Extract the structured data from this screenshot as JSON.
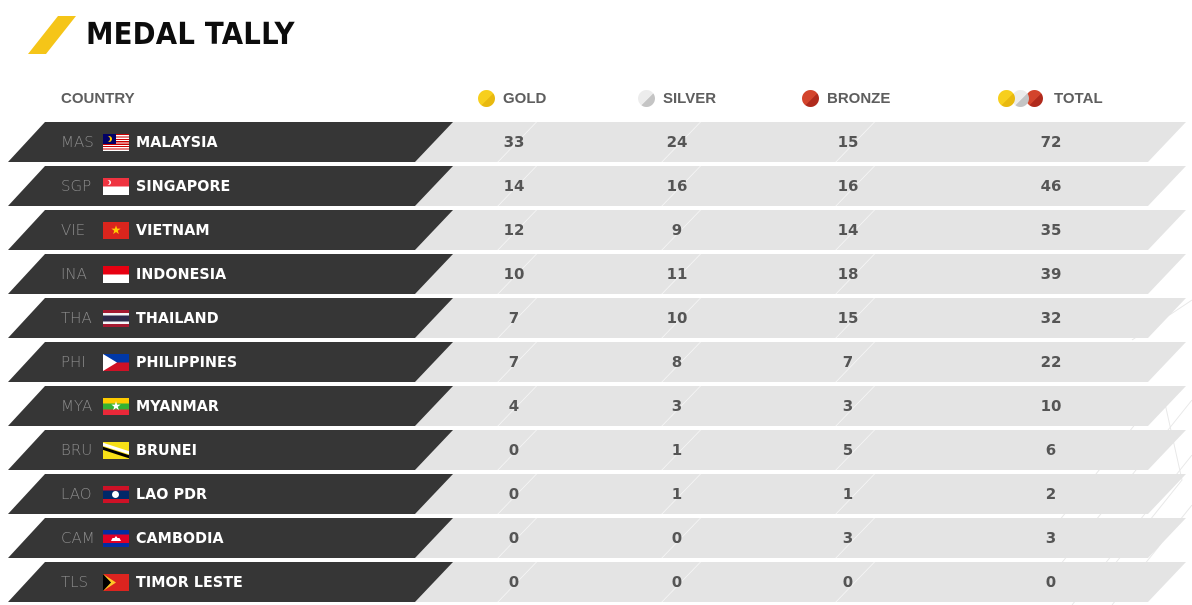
{
  "header": {
    "title": "MEDAL TALLY",
    "accent_color": "#f5c518"
  },
  "columns": {
    "country": "COUNTRY",
    "gold": "GOLD",
    "silver": "SILVER",
    "bronze": "BRONZE",
    "total": "TOTAL"
  },
  "icons": {
    "gold": "gold-medal-icon",
    "silver": "silver-medal-icon",
    "bronze": "bronze-medal-icon",
    "total": "all-medals-icon"
  },
  "colors": {
    "gold": "#f7cf1d",
    "silver": "#e2e2e2",
    "bronze": "#d3442c",
    "row_dark": "#363636",
    "row_light": "#e4e4e4"
  },
  "rows": [
    {
      "code": "MAS",
      "flag": "malaysia-flag",
      "name": "MALAYSIA",
      "gold": "33",
      "silver": "24",
      "bronze": "15",
      "total": "72"
    },
    {
      "code": "SGP",
      "flag": "singapore-flag",
      "name": "SINGAPORE",
      "gold": "14",
      "silver": "16",
      "bronze": "16",
      "total": "46"
    },
    {
      "code": "VIE",
      "flag": "vietnam-flag",
      "name": "VIETNAM",
      "gold": "12",
      "silver": "9",
      "bronze": "14",
      "total": "35"
    },
    {
      "code": "INA",
      "flag": "indonesia-flag",
      "name": "INDONESIA",
      "gold": "10",
      "silver": "11",
      "bronze": "18",
      "total": "39"
    },
    {
      "code": "THA",
      "flag": "thailand-flag",
      "name": "THAILAND",
      "gold": "7",
      "silver": "10",
      "bronze": "15",
      "total": "32"
    },
    {
      "code": "PHI",
      "flag": "philippines-flag",
      "name": "PHILIPPINES",
      "gold": "7",
      "silver": "8",
      "bronze": "7",
      "total": "22"
    },
    {
      "code": "MYA",
      "flag": "myanmar-flag",
      "name": "MYANMAR",
      "gold": "4",
      "silver": "3",
      "bronze": "3",
      "total": "10"
    },
    {
      "code": "BRU",
      "flag": "brunei-flag",
      "name": "BRUNEI",
      "gold": "0",
      "silver": "1",
      "bronze": "5",
      "total": "6"
    },
    {
      "code": "LAO",
      "flag": "laos-flag",
      "name": "LAO PDR",
      "gold": "0",
      "silver": "1",
      "bronze": "1",
      "total": "2"
    },
    {
      "code": "CAM",
      "flag": "cambodia-flag",
      "name": "CAMBODIA",
      "gold": "0",
      "silver": "0",
      "bronze": "3",
      "total": "3"
    },
    {
      "code": "TLS",
      "flag": "timor-leste-flag",
      "name": "TIMOR LESTE",
      "gold": "0",
      "silver": "0",
      "bronze": "0",
      "total": "0"
    }
  ],
  "flag_symbols": {
    "vietnam_star": "★",
    "myanmar_star": "★"
  }
}
